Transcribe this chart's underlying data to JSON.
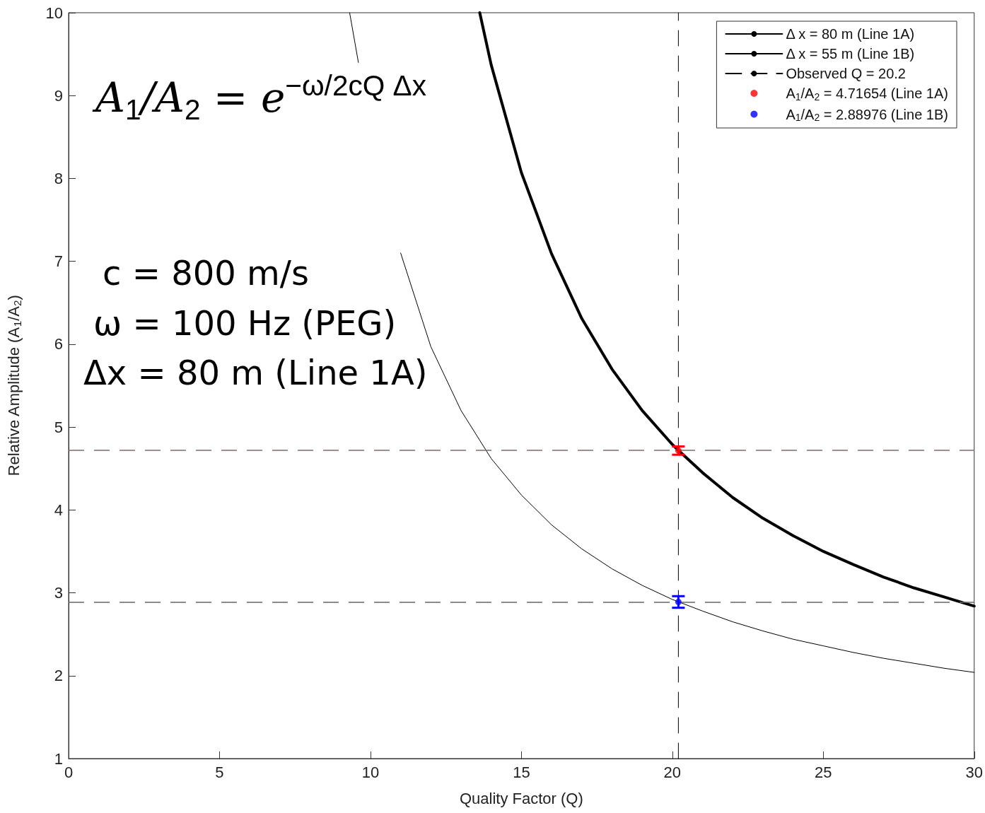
{
  "chart_data": {
    "type": "line",
    "xlabel": "Quality Factor (Q)",
    "ylabel": "Relative Amplitude (A$_{1}$/A$_{2}$)",
    "xlim": [
      0,
      30
    ],
    "xticks": [
      0,
      5,
      10,
      15,
      20,
      25,
      30
    ],
    "ylim": [
      1,
      10
    ],
    "yticks": [
      1,
      2,
      3,
      4,
      5,
      6,
      7,
      8,
      9,
      10
    ],
    "grid": false,
    "legend": "top right",
    "series": [
      {
        "name": "Δ x = 80 m (Line 1A)",
        "color": "#000000",
        "marker": "none",
        "line_style": "solid",
        "x": [
          13.62,
          14,
          15,
          16,
          17,
          18,
          19,
          20,
          20.2,
          21,
          22,
          23,
          24,
          25,
          26,
          27,
          28,
          29,
          30
        ],
        "values": [
          10.0,
          9.37,
          8.07,
          7.09,
          6.31,
          5.7,
          5.2,
          4.79,
          4.72,
          4.45,
          4.15,
          3.9,
          3.69,
          3.5,
          3.34,
          3.19,
          3.06,
          2.95,
          2.84
        ]
      },
      {
        "name": "Δ x = 55 m (Line 1B)",
        "color": "#000000",
        "marker": "none",
        "line_style": "solid",
        "x": [
          9.31,
          9.6,
          10.3,
          11,
          12,
          13,
          14,
          15,
          16,
          17,
          18,
          19,
          20,
          21,
          22,
          23,
          24,
          25,
          26,
          27,
          28,
          29,
          30
        ],
        "values": [
          10.0,
          9.4,
          null,
          7.1,
          5.97,
          5.2,
          4.62,
          4.18,
          3.82,
          3.53,
          3.29,
          3.09,
          2.92,
          2.78,
          2.65,
          2.54,
          2.44,
          2.36,
          2.28,
          2.21,
          2.15,
          2.09,
          2.04
        ]
      },
      {
        "name": "Observed Q = 20.2",
        "color": "#000000",
        "marker": "none",
        "line_style": "dashed",
        "x": [
          20.2,
          20.2
        ],
        "values": [
          1,
          10
        ]
      },
      {
        "name": "A$_{1}$/A$_{2}$ = 4.71654 (Line 1A)",
        "type": "scatter",
        "color": "#ff0000",
        "marker": "circle",
        "x": [
          20.2
        ],
        "values": [
          4.71654
        ],
        "errors": [
          0.05
        ]
      },
      {
        "name": "A$_{1}$/A$_{2}$ = 2.88976 (Line 1B)",
        "type": "scatter",
        "color": "#0000ff",
        "marker": "circle",
        "x": [
          20.2
        ],
        "values": [
          2.88976
        ],
        "errors": [
          0.07
        ]
      }
    ],
    "ref_lines": [
      {
        "axis": "y",
        "value": 4.71654,
        "color": "#7f6b6b",
        "line_style": "dashed"
      },
      {
        "axis": "y",
        "value": 2.88976,
        "color": "#666666",
        "line_style": "dashed"
      }
    ],
    "annotations": [
      "A$_{1}$/A$_{2}$ = e$^{−ω/2cQ Δx}$",
      "c = 800 m/s",
      "ω = 100 Hz (PEG)",
      "Δx = 80 m (Line 1A)"
    ]
  }
}
